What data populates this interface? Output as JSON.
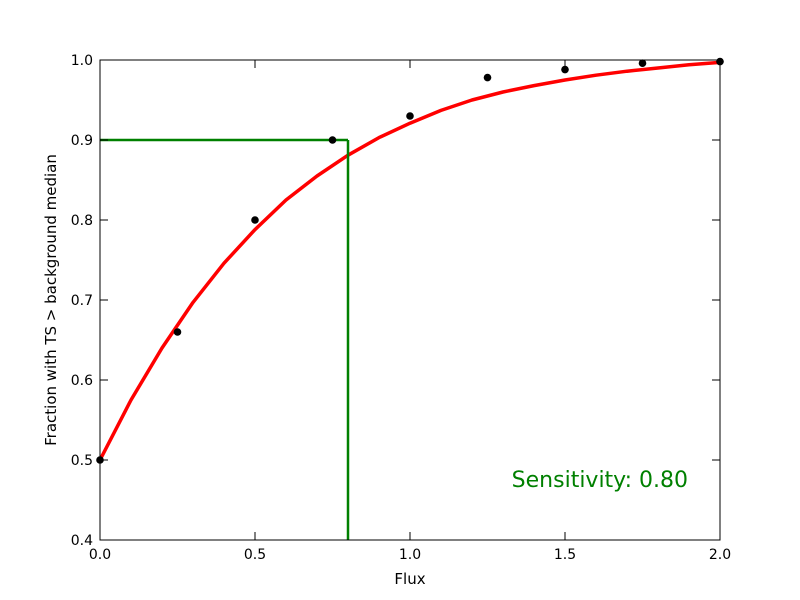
{
  "chart_data": {
    "type": "scatter",
    "title": "",
    "xlabel": "Flux",
    "ylabel": "Fraction with TS > background median",
    "xlim": [
      0.0,
      2.0
    ],
    "ylim": [
      0.4,
      1.0
    ],
    "xticks": [
      "0.0",
      "0.5",
      "1.0",
      "1.5",
      "2.0"
    ],
    "yticks": [
      "0.4",
      "0.5",
      "0.6",
      "0.7",
      "0.8",
      "0.9",
      "1.0"
    ],
    "grid": false,
    "points": {
      "x": [
        0.0,
        0.25,
        0.5,
        0.75,
        1.0,
        1.25,
        1.5,
        1.75,
        2.0
      ],
      "y": [
        0.5,
        0.66,
        0.8,
        0.9,
        0.93,
        0.978,
        0.988,
        0.996,
        0.998
      ],
      "color": "#000000"
    },
    "fit_curve": {
      "x": [
        0.0,
        0.1,
        0.2,
        0.3,
        0.4,
        0.5,
        0.6,
        0.7,
        0.8,
        0.9,
        1.0,
        1.1,
        1.2,
        1.3,
        1.4,
        1.5,
        1.6,
        1.7,
        1.8,
        1.9,
        2.0
      ],
      "y": [
        0.5,
        0.575,
        0.64,
        0.697,
        0.746,
        0.788,
        0.825,
        0.855,
        0.881,
        0.903,
        0.921,
        0.937,
        0.95,
        0.96,
        0.968,
        0.975,
        0.981,
        0.986,
        0.99,
        0.994,
        0.997
      ],
      "color": "#ff0000"
    },
    "threshold": {
      "fraction": 0.9,
      "flux": 0.8,
      "color": "#008000"
    },
    "annotation": "Sensitivity: 0.80",
    "annotation_color": "#008000"
  }
}
